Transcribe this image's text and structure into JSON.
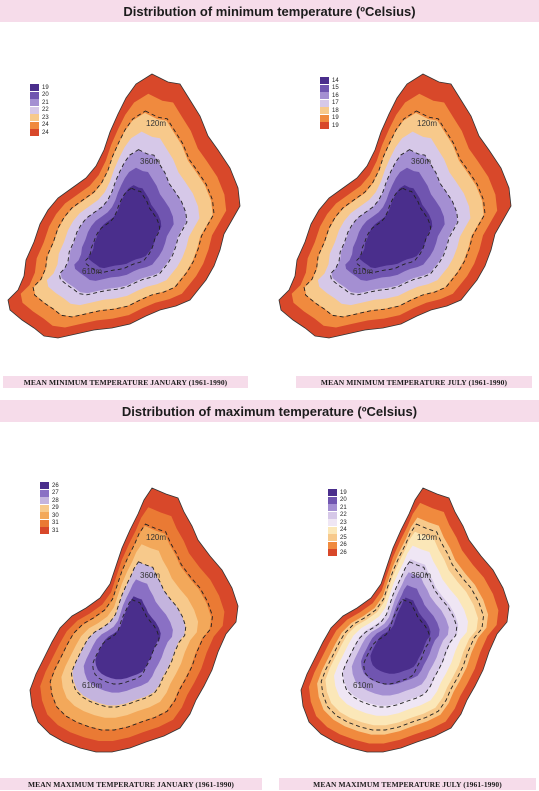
{
  "sections": [
    {
      "title": "Distribution of minimum temperature (ºCelsius)",
      "maps": [
        {
          "caption": "MEAN MINIMUM TEMPERATURE JANUARY (1961-1990)",
          "legend": [
            {
              "label": "19",
              "color": "#4a2e8c"
            },
            {
              "label": "20",
              "color": "#7055b0"
            },
            {
              "label": "21",
              "color": "#a48fd2"
            },
            {
              "label": "22",
              "color": "#d6c8e8"
            },
            {
              "label": "23",
              "color": "#f7c98b"
            },
            {
              "label": "24",
              "color": "#f08a3e"
            },
            {
              "label": "24",
              "color": "#d8482a"
            }
          ],
          "contours": [
            "120m",
            "360m",
            "610m"
          ],
          "shape": "A"
        },
        {
          "caption": "MEAN MINIMUM TEMPERATURE JULY (1961-1990)",
          "legend": [
            {
              "label": "14",
              "color": "#4a2e8c"
            },
            {
              "label": "15",
              "color": "#7055b0"
            },
            {
              "label": "16",
              "color": "#a48fd2"
            },
            {
              "label": "17",
              "color": "#d6c8e8"
            },
            {
              "label": "18",
              "color": "#f7c98b"
            },
            {
              "label": "19",
              "color": "#f08a3e"
            },
            {
              "label": "19",
              "color": "#d8482a"
            }
          ],
          "contours": [
            "120m",
            "360m",
            "610m"
          ],
          "shape": "A"
        }
      ]
    },
    {
      "title": "Distribution of maximum temperature (ºCelsius)",
      "maps": [
        {
          "caption": "MEAN MAXIMUM TEMPERATURE JANUARY (1961-1990)",
          "legend": [
            {
              "label": "26",
              "color": "#4a2e8c"
            },
            {
              "label": "27",
              "color": "#8a70c4"
            },
            {
              "label": "28",
              "color": "#c4b4de"
            },
            {
              "label": "29",
              "color": "#f7c98b"
            },
            {
              "label": "30",
              "color": "#f3a85a"
            },
            {
              "label": "31",
              "color": "#ea7a34"
            },
            {
              "label": "31",
              "color": "#d8482a"
            }
          ],
          "contours": [
            "120m",
            "360m",
            "610m"
          ],
          "shape": "B"
        },
        {
          "caption": "MEAN MAXIMUM TEMPERATURE JULY (1961-1990)",
          "legend": [
            {
              "label": "19",
              "color": "#4a2e8c"
            },
            {
              "label": "20",
              "color": "#7055b0"
            },
            {
              "label": "21",
              "color": "#a48fd2"
            },
            {
              "label": "22",
              "color": "#d6c8e8"
            },
            {
              "label": "23",
              "color": "#efe6f4"
            },
            {
              "label": "24",
              "color": "#fbe7b8"
            },
            {
              "label": "25",
              "color": "#f7c98b"
            },
            {
              "label": "26",
              "color": "#f08a3e"
            },
            {
              "label": "26",
              "color": "#d8482a"
            }
          ],
          "contours": [
            "120m",
            "360m",
            "610m"
          ],
          "shape": "B"
        }
      ]
    }
  ]
}
